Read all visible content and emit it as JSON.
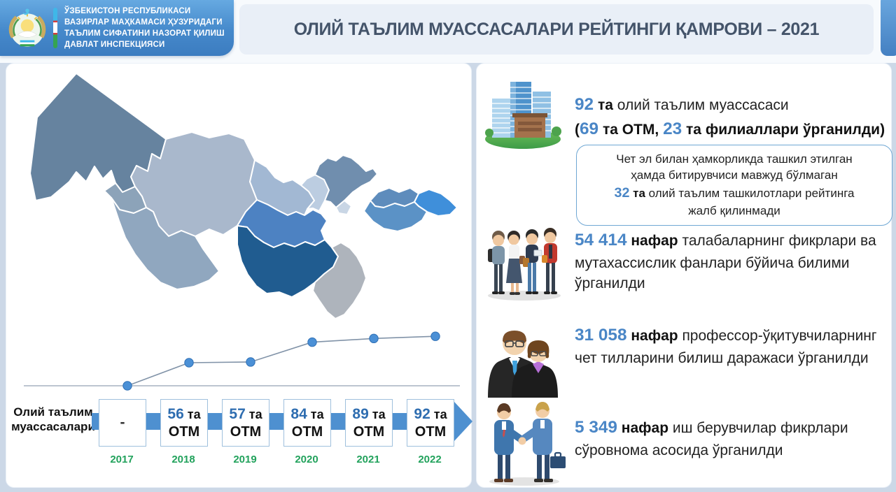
{
  "header": {
    "logo_lines": [
      "ЎЗБЕКИСТОН РЕСПУБЛИКАСИ",
      "ВАЗИРЛАР МАҲКАМАСИ ҲУЗУРИДАГИ",
      "ТАЪЛИМ СИФАТИНИ НАЗОРАТ ҚИЛИШ",
      "ДАВЛАТ ИНСПЕКЦИЯСИ"
    ],
    "title": "ОЛИЙ ТАЪЛИМ МУАССАСАЛАРИ РЕЙТИНГИ ҚАМРОВИ – 2021"
  },
  "chart_data": {
    "type": "line",
    "x": [
      "2017",
      "2018",
      "2019",
      "2020",
      "2021",
      "2022"
    ],
    "values": [
      null,
      56,
      57,
      84,
      89,
      92
    ],
    "series_name": "Олий таълим муассасалари сони (ОТМ)",
    "title": "",
    "xlabel": "",
    "ylabel": "",
    "grid": false,
    "legend": false,
    "marker_color": "#4b90d6",
    "line_color": "#8193a8"
  },
  "timeline": {
    "label": "Олий таълим муассасалари",
    "items": [
      {
        "value": "-",
        "suffix": "",
        "line2": "",
        "year": "2017"
      },
      {
        "value": "56",
        "suffix": "та",
        "line2": "ОТМ",
        "year": "2018"
      },
      {
        "value": "57",
        "suffix": "та",
        "line2": "ОТМ",
        "year": "2019"
      },
      {
        "value": "84",
        "suffix": "та",
        "line2": "ОТМ",
        "year": "2020"
      },
      {
        "value": "89",
        "suffix": "та",
        "line2": "ОТМ",
        "year": "2021"
      },
      {
        "value": "92",
        "suffix": "та",
        "line2": "ОТМ",
        "year": "2022"
      }
    ]
  },
  "stats": [
    {
      "icon": "buildings",
      "lines": [
        [
          {
            "t": "92",
            "s": "num"
          },
          {
            "t": " та ",
            "s": "bold"
          },
          {
            "t": "олий таълим муассасаси",
            "s": "reg"
          }
        ],
        [
          {
            "t": "(",
            "s": "bold"
          },
          {
            "t": "69",
            "s": "num"
          },
          {
            "t": " та ОТМ, ",
            "s": "bold"
          },
          {
            "t": "23",
            "s": "num"
          },
          {
            "t": " та филиаллари ўрганилди)",
            "s": "bold"
          }
        ]
      ]
    },
    {
      "icon": "students",
      "lines": [
        [
          {
            "t": "54 414",
            "s": "num"
          },
          {
            "t": " нафар ",
            "s": "bold"
          },
          {
            "t": "талабаларнинг фикрлари ва мутахассислик фанлари бўйича билими ўрганилди",
            "s": "reg"
          }
        ]
      ]
    },
    {
      "icon": "professors",
      "lines": [
        [
          {
            "t": "31 058",
            "s": "num"
          },
          {
            "t": " нафар ",
            "s": "bold"
          },
          {
            "t": "профессор-ўқитувчиларнинг чет тилларини билиш даражаси ўрганилди",
            "s": "reg"
          }
        ]
      ]
    },
    {
      "icon": "handshake",
      "lines": [
        [
          {
            "t": "5 349",
            "s": "num"
          },
          {
            "t": " нафар ",
            "s": "bold"
          },
          {
            "t": "иш берувчилар фикрлари сўровнома асосида ўрганилди",
            "s": "reg"
          }
        ]
      ]
    }
  ],
  "note": {
    "lines": [
      [
        {
          "t": "Чет эл билан ҳамкорликда ташкил этилган",
          "s": "reg"
        }
      ],
      [
        {
          "t": "ҳамда битирувчиси мавжуд бўлмаган",
          "s": "reg"
        }
      ],
      [
        {
          "t": "32",
          "s": "num"
        },
        {
          "t": " та ",
          "s": "bold"
        },
        {
          "t": "олий таълим ташкилотлари рейтинга",
          "s": "reg"
        }
      ],
      [
        {
          "t": "жалб қилинмади",
          "s": "reg"
        }
      ]
    ]
  },
  "map": {
    "palette": {
      "karakalpakstan": "#66839F",
      "khorezm": "#8CA3B9",
      "navoiy": "#A9B8CC",
      "bukhara": "#90A7BF",
      "samarkand": "#4D82C2",
      "kashkadarya": "#205C90",
      "surkhandarya": "#AEB4BC",
      "jizzakh": "#A2B8D3",
      "sirdarya": "#BCCDE1",
      "tashkent_region": "#708EAE",
      "tashkent_city": "#C9D6E5",
      "namangan": "#5E8CBC",
      "fergana": "#5B92C6",
      "andijan": "#3F8FDA"
    }
  },
  "colors": {
    "accent_blue": "#4a86c6",
    "timeline_bar": "#4e90d0",
    "year_green": "#22a25c",
    "title_text": "#44546a",
    "header_gradient_top": "#66a9e1",
    "header_gradient_bottom": "#3c7cc0",
    "page_background": "#ccd8e7"
  }
}
